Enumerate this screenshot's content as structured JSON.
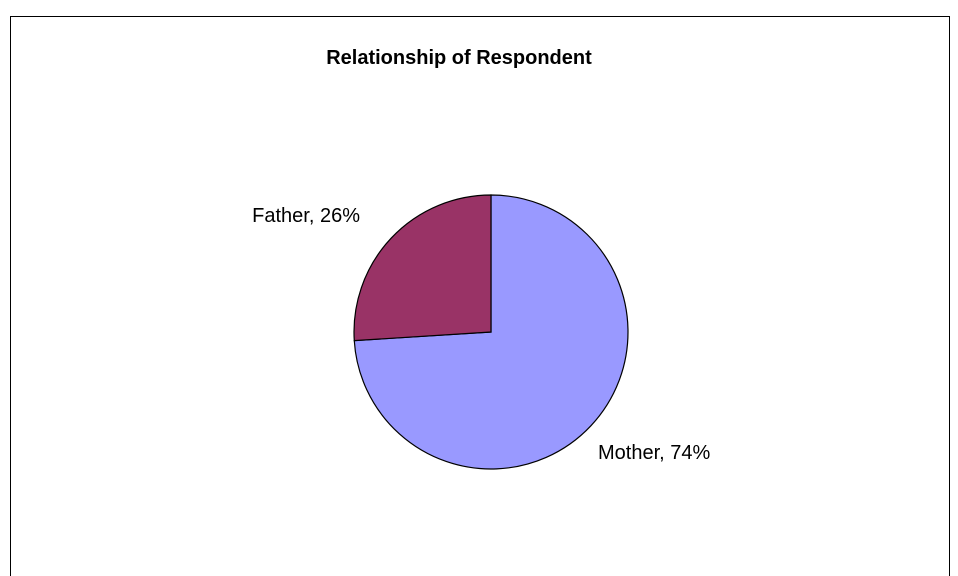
{
  "chart_data": {
    "type": "pie",
    "title": "Relationship of Respondent",
    "slices": [
      {
        "label": "Mother",
        "value": 74,
        "display": "Mother, 74%",
        "color": "#9999ff"
      },
      {
        "label": "Father",
        "value": 26,
        "display": "Father, 26%",
        "color": "#993366"
      }
    ],
    "start_angle_deg": 0,
    "direction": "clockwise",
    "legend": "none",
    "data_labels": "outside"
  }
}
